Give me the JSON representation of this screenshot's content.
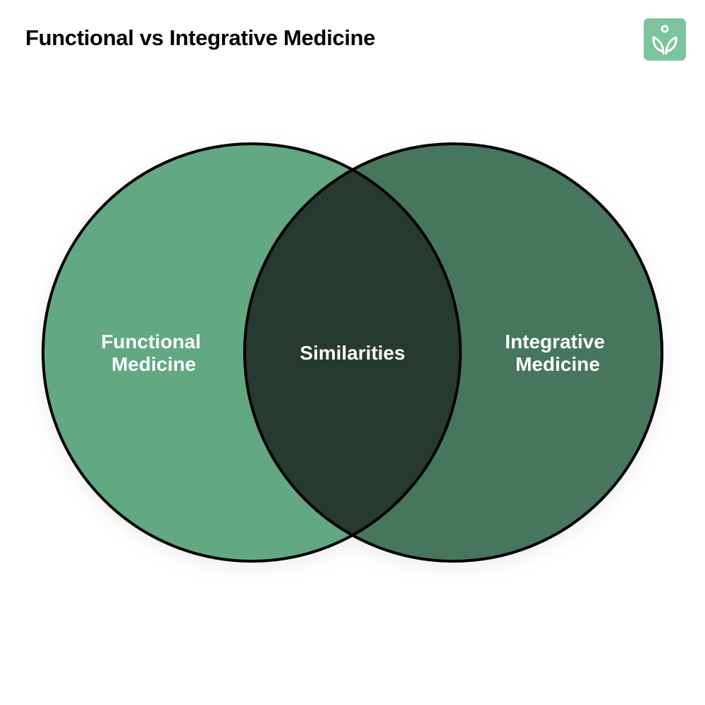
{
  "header": {
    "title": "Functional vs Integrative Medicine",
    "logo_icon": "sprout-person-icon"
  },
  "venn": {
    "left": {
      "label_lines": [
        "Functional",
        "Medicine"
      ],
      "color": "#62a883"
    },
    "right": {
      "label_lines": [
        "Integrative",
        "Medicine"
      ],
      "color": "#47765f"
    },
    "overlap": {
      "label": "Similarities",
      "color": "#263a30"
    },
    "outline_color": "#000000",
    "logo_color": "#7cc49b"
  }
}
